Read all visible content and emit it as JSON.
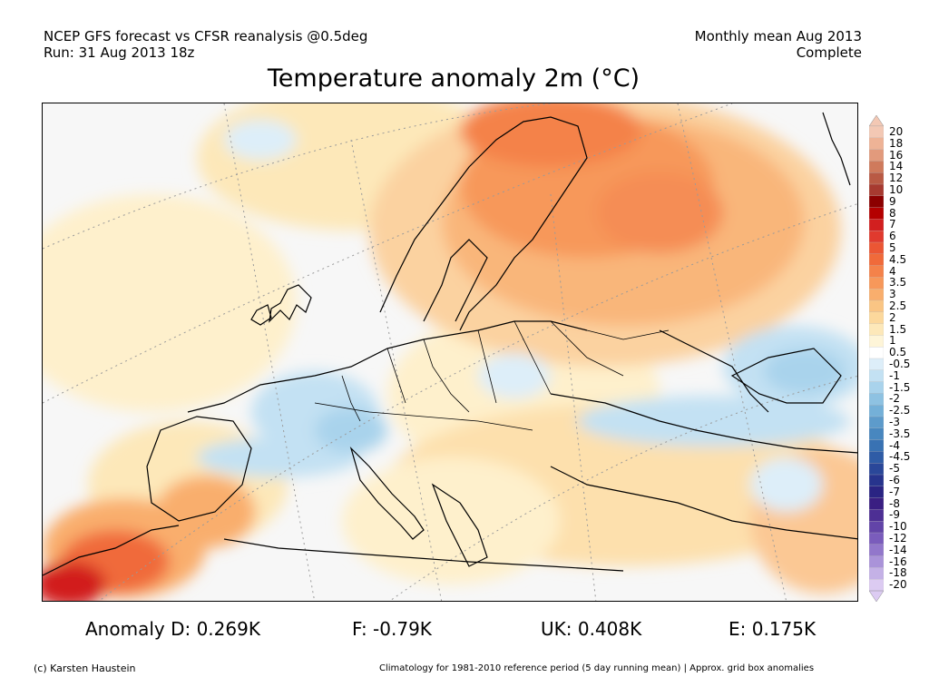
{
  "header": {
    "left_line1": "NCEP GFS forecast vs CFSR reanalysis @0.5deg",
    "left_line2": "Run: 31 Aug 2013 18z",
    "right_line1": "Monthly mean Aug 2013",
    "right_line2": "Complete"
  },
  "title": "Temperature anomaly 2m (°C)",
  "colorbar": {
    "labels": [
      "20",
      "18",
      "16",
      "14",
      "12",
      "10",
      "9",
      "8",
      "7",
      "6",
      "5",
      "4.5",
      "4",
      "3.5",
      "3",
      "2.5",
      "2",
      "1.5",
      "1",
      "0.5",
      "-0.5",
      "-1",
      "-1.5",
      "-2",
      "-2.5",
      "-3",
      "-3.5",
      "-4",
      "-4.5",
      "-5",
      "-6",
      "-7",
      "-8",
      "-9",
      "-10",
      "-12",
      "-14",
      "-16",
      "-18",
      "-20"
    ],
    "colors": [
      "#f3c8b4",
      "#eeb396",
      "#e29a7c",
      "#cf7a5c",
      "#b95a44",
      "#a73a30",
      "#8c0000",
      "#b40000",
      "#d21f1f",
      "#e03a2e",
      "#eb5634",
      "#f06a3a",
      "#f4824a",
      "#f7985a",
      "#f9ae6d",
      "#fac584",
      "#fcd89c",
      "#fde8b9",
      "#fef5d8",
      "#ffffff",
      "#ddeef9",
      "#c3e1f3",
      "#a9d3ec",
      "#8ec2e2",
      "#74b0d8",
      "#5d9bcb",
      "#4887bf",
      "#3972b3",
      "#2f5ca6",
      "#2a4799",
      "#27348d",
      "#2a2483",
      "#3a1e82",
      "#4d2f94",
      "#6244a8",
      "#7a5cbc",
      "#9277cb",
      "#aa93d9",
      "#c4b1e6",
      "#dccbf2"
    ]
  },
  "stats": {
    "d": "Anomaly D: 0.269K",
    "f": "F: -0.79K",
    "uk": "UK: 0.408K",
    "e": "E: 0.175K"
  },
  "footer": {
    "credit": "(c) Karsten Haustein",
    "climatology": "Climatology for 1981-2010 reference period (5 day running mean) | Approx. grid box anomalies"
  }
}
